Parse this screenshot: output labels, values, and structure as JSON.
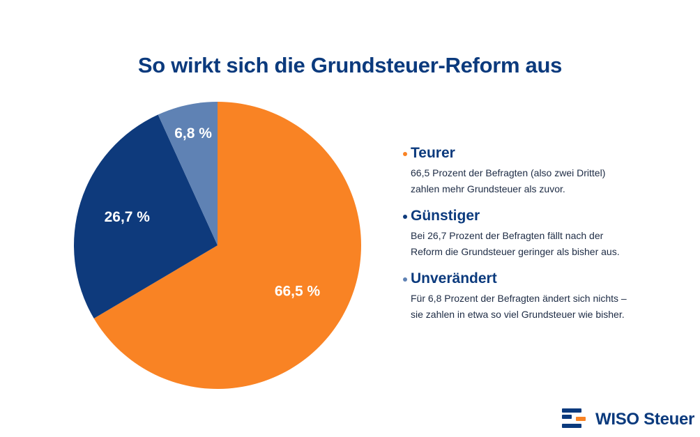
{
  "title": "So wirkt sich die Grundsteuer-Reform aus",
  "chart_data": {
    "type": "pie",
    "title": "So wirkt sich die Grundsteuer-Reform aus",
    "categories": [
      "Teurer",
      "Günstiger",
      "Unverändert"
    ],
    "values": [
      66.5,
      26.7,
      6.8
    ],
    "labels": [
      "66,5 %",
      "26,7 %",
      "6,8 %"
    ],
    "colors": [
      "#f98324",
      "#0e3a7c",
      "#5f82b4"
    ],
    "legend_position": "right"
  },
  "legend": [
    {
      "name": "Teurer",
      "color": "#f98324",
      "description": "66,5 Prozent der Befragten (also zwei Drittel) zahlen mehr Grundsteuer als zuvor."
    },
    {
      "name": "Günstiger",
      "color": "#0e3a7c",
      "description": "Bei 26,7 Prozent der Befragten fällt nach der Reform die Grundsteuer geringer als bisher aus."
    },
    {
      "name": "Unverändert",
      "color": "#5f82b4",
      "description": "Für 6,8 Prozent der Befragten ändert sich nichts – sie zahlen in etwa so viel Grundsteuer wie bisher."
    }
  ],
  "logo": {
    "text": "WISO Steuer",
    "icon": "wiso-logo-icon",
    "colors": [
      "#0b3a7d",
      "#f98324"
    ]
  }
}
